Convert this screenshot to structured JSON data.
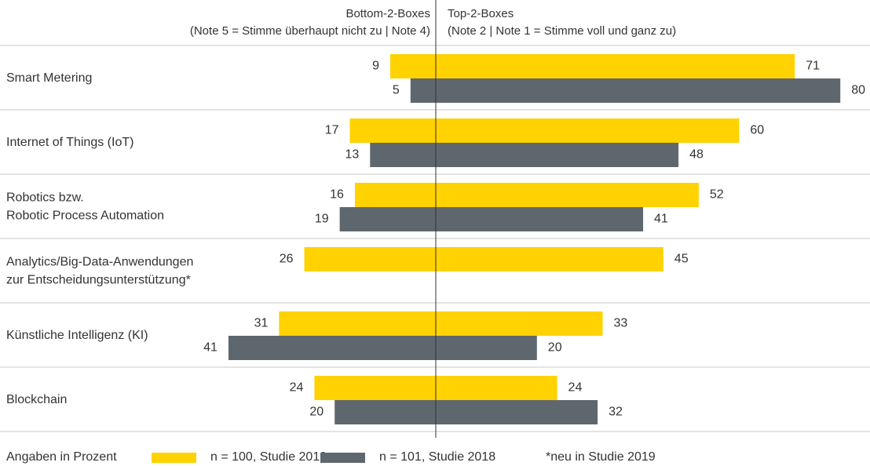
{
  "chart_data": {
    "type": "diverging-bar",
    "header_left": "Bottom-2-Boxes",
    "header_left_sub": "(Note 5 = Stimme überhaupt nicht zu | Note 4)",
    "header_right": "Top-2-Boxes",
    "header_right_sub": "(Note 2 | Note 1 = Stimme voll und ganz zu)",
    "categories": [
      "Smart Metering",
      "Internet of Things (IoT)",
      "Robotics bzw.\nRobotic Process Automation",
      "Analytics/Big-Data-Anwendungen\nzur Entscheidungsunterstützung*",
      "Künstliche Intelligenz (KI)",
      "Blockchain"
    ],
    "series": [
      {
        "name": "n = 100, Studie 2019",
        "color": "#ffd200",
        "bottom": [
          9,
          17,
          16,
          26,
          31,
          24
        ],
        "top": [
          71,
          60,
          52,
          45,
          33,
          24
        ]
      },
      {
        "name": "n = 101, Studie 2018",
        "color": "#5f676e",
        "bottom": [
          5,
          13,
          19,
          null,
          41,
          20
        ],
        "top": [
          80,
          48,
          41,
          null,
          20,
          32
        ]
      }
    ],
    "footer_note": "Angaben in Prozent",
    "footnote": "*neu in Studie 2019"
  }
}
